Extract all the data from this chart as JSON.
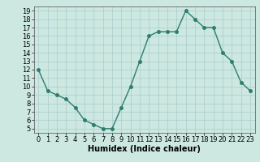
{
  "x": [
    0,
    1,
    2,
    3,
    4,
    5,
    6,
    7,
    8,
    9,
    10,
    11,
    12,
    13,
    14,
    15,
    16,
    17,
    18,
    19,
    20,
    21,
    22,
    23
  ],
  "y": [
    12,
    9.5,
    9,
    8.5,
    7.5,
    6,
    5.5,
    5,
    5,
    7.5,
    10,
    13,
    16,
    16.5,
    16.5,
    16.5,
    19,
    18,
    17,
    17,
    14,
    13,
    10.5,
    9.5
  ],
  "line_color": "#2e7d6e",
  "marker": "o",
  "markersize": 2.5,
  "linewidth": 1.0,
  "bg_color": "#cce8e0",
  "grid_color": "#aacccc",
  "xlabel": "Humidex (Indice chaleur)",
  "xlabel_fontsize": 7,
  "tick_fontsize": 6,
  "xlim": [
    -0.5,
    23.5
  ],
  "ylim": [
    4.5,
    19.5
  ],
  "yticks": [
    5,
    6,
    7,
    8,
    9,
    10,
    11,
    12,
    13,
    14,
    15,
    16,
    17,
    18,
    19
  ],
  "xticks": [
    0,
    1,
    2,
    3,
    4,
    5,
    6,
    7,
    8,
    9,
    10,
    11,
    12,
    13,
    14,
    15,
    16,
    17,
    18,
    19,
    20,
    21,
    22,
    23
  ],
  "xtick_labels": [
    "0",
    "1",
    "2",
    "3",
    "4",
    "5",
    "6",
    "7",
    "8",
    "9",
    "10",
    "11",
    "12",
    "13",
    "14",
    "15",
    "16",
    "17",
    "18",
    "19",
    "20",
    "21",
    "22",
    "23"
  ]
}
